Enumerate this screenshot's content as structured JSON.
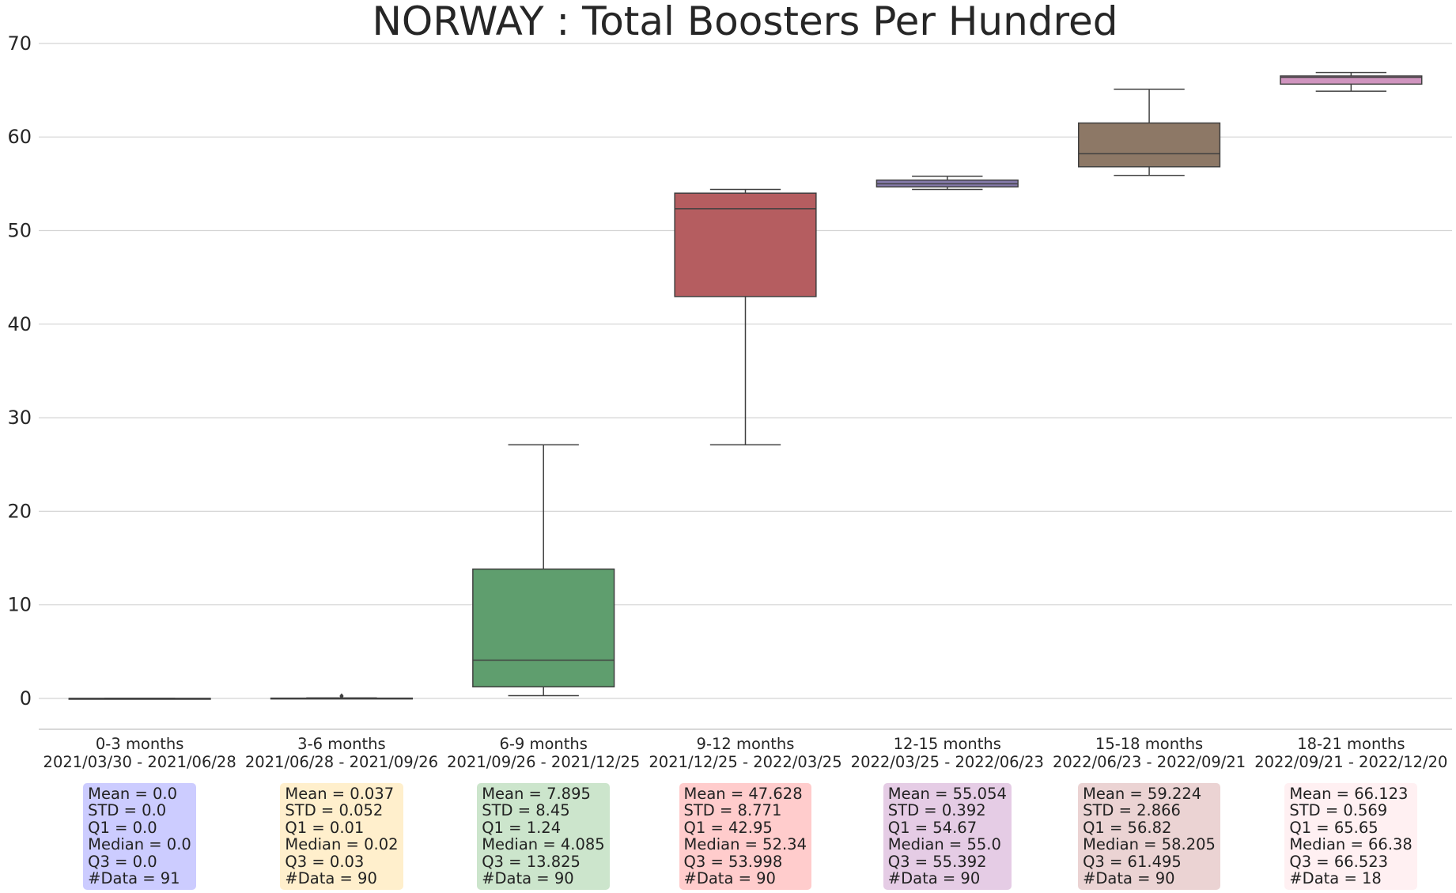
{
  "chart_data": {
    "type": "box",
    "title": "NORWAY : Total Boosters Per Hundred",
    "xlabel": "",
    "ylabel": "",
    "ylim": [
      -3.3,
      70
    ],
    "yticks": [
      0,
      10,
      20,
      30,
      40,
      50,
      60,
      70
    ],
    "grid": "horizontal",
    "categories": [
      {
        "label": "0-3 months",
        "range": "2021/03/30 - 2021/06/28"
      },
      {
        "label": "3-6 months",
        "range": "2021/06/28 - 2021/09/26"
      },
      {
        "label": "6-9 months",
        "range": "2021/09/26 - 2021/12/25"
      },
      {
        "label": "9-12 months",
        "range": "2021/12/25 - 2022/03/25"
      },
      {
        "label": "12-15 months",
        "range": "2022/03/25 - 2022/06/23"
      },
      {
        "label": "15-18 months",
        "range": "2022/06/23 - 2022/09/21"
      },
      {
        "label": "18-21 months",
        "range": "2022/09/21 - 2022/12/20"
      }
    ],
    "boxes": [
      {
        "q1": 0.0,
        "median": 0.0,
        "q3": 0.0,
        "whisker_low": 0.0,
        "whisker_high": 0.0,
        "outliers": [],
        "color": "#4a57d6",
        "stat_color": "#ccccff"
      },
      {
        "q1": 0.01,
        "median": 0.02,
        "q3": 0.03,
        "whisker_low": 0.0,
        "whisker_high": 0.05,
        "outliers": [
          0.2,
          0.3
        ],
        "color": "#d9a441",
        "stat_color": "#ffefcc"
      },
      {
        "q1": 1.24,
        "median": 4.085,
        "q3": 13.825,
        "whisker_low": 0.3,
        "whisker_high": 27.1,
        "outliers": [],
        "color": "#5f9e6e",
        "stat_color": "#cce5cc"
      },
      {
        "q1": 42.95,
        "median": 52.34,
        "q3": 53.998,
        "whisker_low": 27.1,
        "whisker_high": 54.4,
        "outliers": [],
        "color": "#b55d60",
        "stat_color": "#ffcccc"
      },
      {
        "q1": 54.67,
        "median": 55.0,
        "q3": 55.392,
        "whisker_low": 54.4,
        "whisker_high": 55.8,
        "outliers": [],
        "color": "#857aab",
        "stat_color": "#e5cce5"
      },
      {
        "q1": 56.82,
        "median": 58.205,
        "q3": 61.495,
        "whisker_low": 55.9,
        "whisker_high": 65.1,
        "outliers": [],
        "color": "#8d7866",
        "stat_color": "#ebd3d3"
      },
      {
        "q1": 65.65,
        "median": 66.38,
        "q3": 66.523,
        "whisker_low": 64.9,
        "whisker_high": 66.9,
        "outliers": [],
        "color": "#d095bf",
        "stat_color": "#fff0f2"
      }
    ],
    "stats": [
      [
        "Mean = 0.0",
        "STD = 0.0",
        "Q1 = 0.0",
        "Median = 0.0",
        "Q3 = 0.0",
        "#Data = 91"
      ],
      [
        "Mean = 0.037",
        "STD = 0.052",
        "Q1 = 0.01",
        "Median = 0.02",
        "Q3 = 0.03",
        "#Data = 90"
      ],
      [
        "Mean = 7.895",
        "STD = 8.45",
        "Q1 = 1.24",
        "Median = 4.085",
        "Q3 = 13.825",
        "#Data = 90"
      ],
      [
        "Mean = 47.628",
        "STD = 8.771",
        "Q1 = 42.95",
        "Median = 52.34",
        "Q3 = 53.998",
        "#Data = 90"
      ],
      [
        "Mean = 55.054",
        "STD = 0.392",
        "Q1 = 54.67",
        "Median = 55.0",
        "Q3 = 55.392",
        "#Data = 90"
      ],
      [
        "Mean = 59.224",
        "STD = 2.866",
        "Q1 = 56.82",
        "Median = 58.205",
        "Q3 = 61.495",
        "#Data = 90"
      ],
      [
        "Mean = 66.123",
        "STD = 0.569",
        "Q1 = 65.65",
        "Median = 66.38",
        "Q3 = 66.523",
        "#Data = 18"
      ]
    ]
  }
}
